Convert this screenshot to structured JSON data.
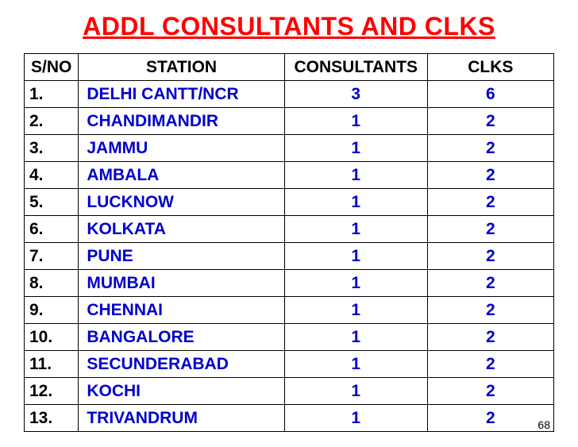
{
  "title": "ADDL CONSULTANTS AND CLKS",
  "columns": {
    "sno": "S/NO",
    "station": "STATION",
    "consultants": "CONSULTANTS",
    "clks": "CLKS"
  },
  "rows": [
    {
      "sno": "1.",
      "station": "DELHI CANTT/NCR",
      "consultants": "3",
      "clks": "6"
    },
    {
      "sno": "2.",
      "station": "CHANDIMANDIR",
      "consultants": "1",
      "clks": "2"
    },
    {
      "sno": "3.",
      "station": "JAMMU",
      "consultants": "1",
      "clks": "2"
    },
    {
      "sno": "4.",
      "station": "AMBALA",
      "consultants": "1",
      "clks": "2"
    },
    {
      "sno": "5.",
      "station": "LUCKNOW",
      "consultants": "1",
      "clks": "2"
    },
    {
      "sno": "6.",
      "station": "KOLKATA",
      "consultants": "1",
      "clks": "2"
    },
    {
      "sno": "7.",
      "station": "PUNE",
      "consultants": "1",
      "clks": "2"
    },
    {
      "sno": "8.",
      "station": "MUMBAI",
      "consultants": "1",
      "clks": "2"
    },
    {
      "sno": "9.",
      "station": "CHENNAI",
      "consultants": "1",
      "clks": "2"
    },
    {
      "sno": "10.",
      "station": "BANGALORE",
      "consultants": "1",
      "clks": "2"
    },
    {
      "sno": "11.",
      "station": "SECUNDERABAD",
      "consultants": "1",
      "clks": "2"
    },
    {
      "sno": "12.",
      "station": "KOCHI",
      "consultants": "1",
      "clks": "2"
    },
    {
      "sno": "13.",
      "station": "TRIVANDRUM",
      "consultants": "1",
      "clks": "2"
    }
  ],
  "pageNumber": "68",
  "styling": {
    "title_color": "#ff0000",
    "title_fontsize": 32,
    "data_color": "#0000cc",
    "header_color": "#000000",
    "border_color": "#000000",
    "background_color": "#ffffff",
    "cell_fontsize": 21
  }
}
